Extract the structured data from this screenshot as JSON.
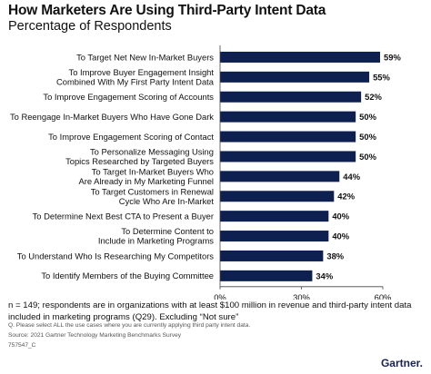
{
  "title": "How Marketers Are Using Third-Party Intent Data",
  "subtitle": "Percentage of Respondents",
  "colors": {
    "bar": "#0d2050",
    "axis": "#444444",
    "grid": "#dddddd"
  },
  "chart_data": {
    "type": "bar",
    "orientation": "horizontal",
    "categories": [
      [
        "To Target Net New In-Market Buyers"
      ],
      [
        "To Improve Buyer Engagement Insight",
        "Combined With My First Party Intent Data"
      ],
      [
        "To Improve Engagement Scoring of Accounts"
      ],
      [
        "To Reengage In-Market Buyers Who Have Gone Dark"
      ],
      [
        "To Improve Engagement Scoring of Contact"
      ],
      [
        "To Personalize Messaging Using",
        "Topics Researched by Targeted Buyers"
      ],
      [
        "To Target In-Market Buyers Who",
        "Are Already in My Marketing Funnel"
      ],
      [
        "To Target Customers in Renewal",
        "Cycle Who Are In-Market"
      ],
      [
        "To Determine Next Best CTA to Present a Buyer"
      ],
      [
        "To Determine Content to",
        "Include in Marketing Programs"
      ],
      [
        "To Understand Who Is Researching My Competitors"
      ],
      [
        "To Identify Members of the Buying Committee"
      ]
    ],
    "values": [
      59,
      55,
      52,
      50,
      50,
      50,
      44,
      42,
      40,
      40,
      38,
      34
    ],
    "value_labels": [
      "59%",
      "55%",
      "52%",
      "50%",
      "50%",
      "50%",
      "44%",
      "42%",
      "40%",
      "40%",
      "38%",
      "34%"
    ],
    "xlim": [
      0,
      60
    ],
    "xticks": [
      0,
      30,
      60
    ],
    "xtick_labels": [
      "0%",
      "30%",
      "60%"
    ],
    "grid": false,
    "legend": "none"
  },
  "footnote": "n = 149; respondents are in organizations with at least $100 million in revenue and third-party intent data included in marketing programs (Q29). Excluding “Not sure”",
  "question": "Q. Please select ALL the use cases where you are currently applying third party intent data.",
  "source": "Source: 2021 Gartner Technology Marketing Benchmarks Survey",
  "code": "757547_C",
  "logo_text": "Gartner",
  "logo_dot": "."
}
